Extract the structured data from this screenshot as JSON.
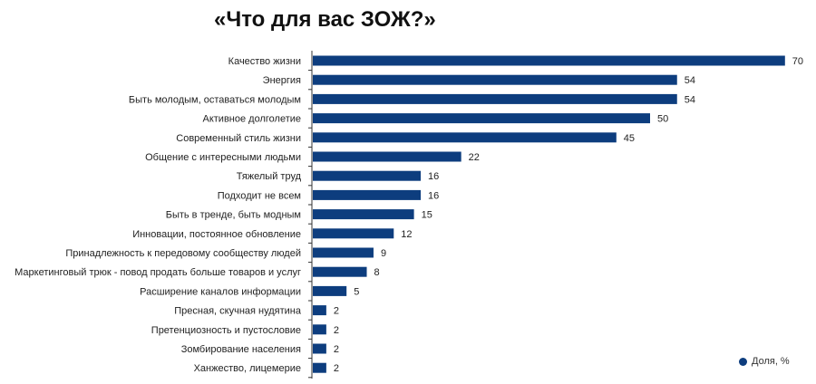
{
  "title": "«Что для вас ЗОЖ?»",
  "colors": {
    "bar": "#0d3d7e",
    "axis": "#333333"
  },
  "legend": {
    "label": "Доля, %"
  },
  "chart_data": {
    "type": "bar",
    "orientation": "horizontal",
    "title": "«Что для вас ЗОЖ?»",
    "categories": [
      "Качество жизни",
      "Энергия",
      "Быть молодым, оставаться молодым",
      "Активное долголетие",
      "Современный стиль жизни",
      "Общение с интересными людьми",
      "Тяжелый труд",
      "Подходит не всем",
      "Быть в тренде, быть модным",
      "Инновации, постоянное обновление",
      "Принадлежность к передовому сообществу людей",
      "Маркетинговый трюк - повод продать больше товаров и услуг",
      "Расширение каналов информации",
      "Пресная, скучная нудятина",
      "Претенциозность и пустословие",
      "Зомбирование населения",
      "Ханжество, лицемерие"
    ],
    "series": [
      {
        "name": "Доля, %",
        "values": [
          70,
          54,
          54,
          50,
          45,
          22,
          16,
          16,
          15,
          12,
          9,
          8,
          5,
          2,
          2,
          2,
          2
        ]
      }
    ],
    "xlim": [
      0,
      70
    ],
    "grid": false,
    "legend": "bottom-right",
    "data_labels": true
  }
}
